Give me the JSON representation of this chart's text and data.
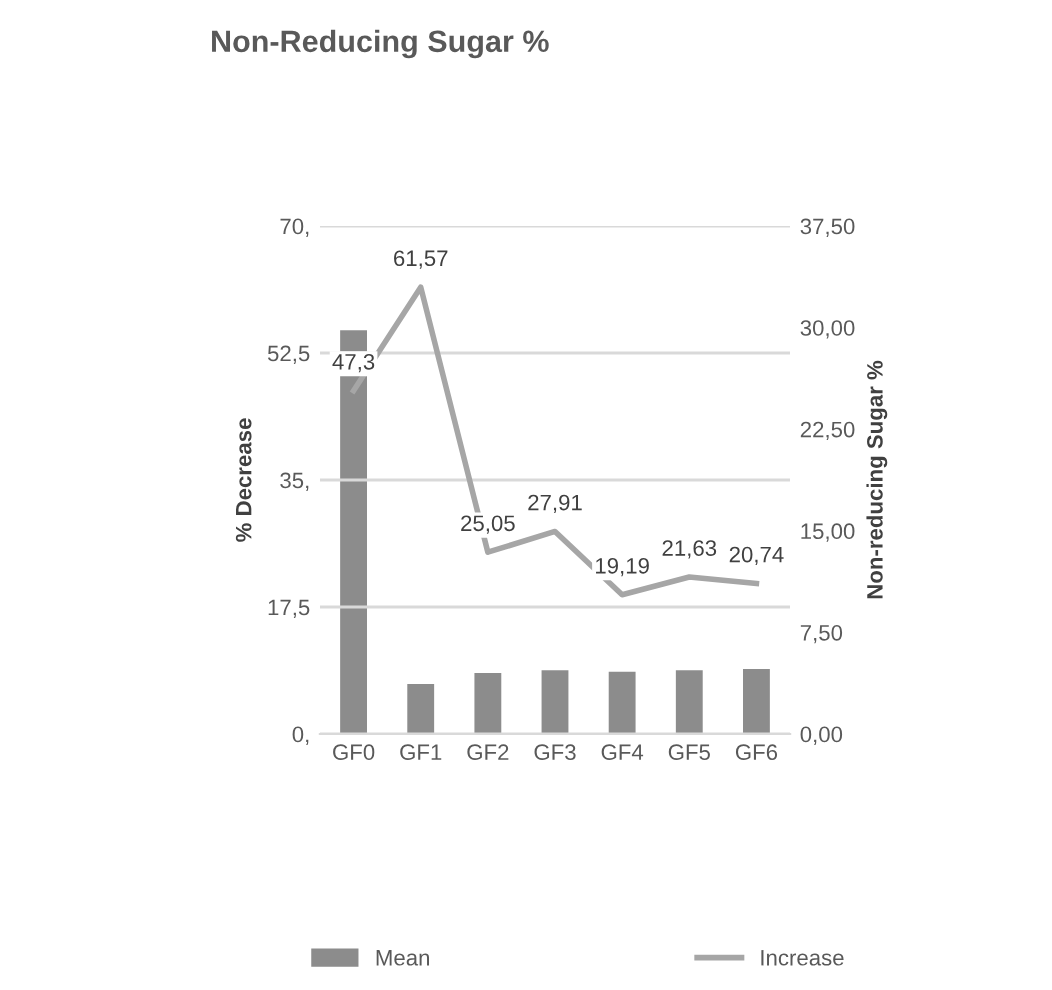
{
  "chart_data": {
    "type": "bar",
    "title": "Non-Reducing Sugar %",
    "ylabel": "% Decrease",
    "y2label": "Non-reducing Sugar %",
    "categories": [
      "GF0",
      "GF1",
      "GF2",
      "GF3",
      "GF4",
      "GF5",
      "GF6"
    ],
    "series": [
      {
        "name": "Mean",
        "axis": "y2",
        "color": "#8c8c8c",
        "values": [
          29.8,
          3.7,
          4.5,
          4.7,
          4.6,
          4.7,
          4.8
        ]
      },
      {
        "name": "Increase",
        "type": "line",
        "axis": "y",
        "color": "#a6a6a6",
        "values": [
          47.3,
          61.57,
          25.05,
          27.91,
          19.19,
          21.63,
          20.74
        ],
        "value_labels": [
          "47,3",
          "61,57",
          "25,05",
          "27,91",
          "19,19",
          "21,63",
          "20,74"
        ]
      }
    ],
    "ylim": [
      0,
      70
    ],
    "yticks": [
      {
        "value": 0,
        "label": "0,"
      },
      {
        "value": 17.5,
        "label": "17,5"
      },
      {
        "value": 35,
        "label": "35,"
      },
      {
        "value": 52.5,
        "label": "52,5"
      },
      {
        "value": 70,
        "label": "70,"
      }
    ],
    "y2lim": [
      0,
      37.5
    ],
    "y2ticks": [
      {
        "value": 0,
        "label": "0,00"
      },
      {
        "value": 7.5,
        "label": "7,50"
      },
      {
        "value": 15,
        "label": "15,00"
      },
      {
        "value": 22.5,
        "label": "22,50"
      },
      {
        "value": 30,
        "label": "30,00"
      },
      {
        "value": 37.5,
        "label": "37,50"
      }
    ],
    "grid": "y",
    "legend": "bottom",
    "marker": "none",
    "line_style": "solid"
  }
}
